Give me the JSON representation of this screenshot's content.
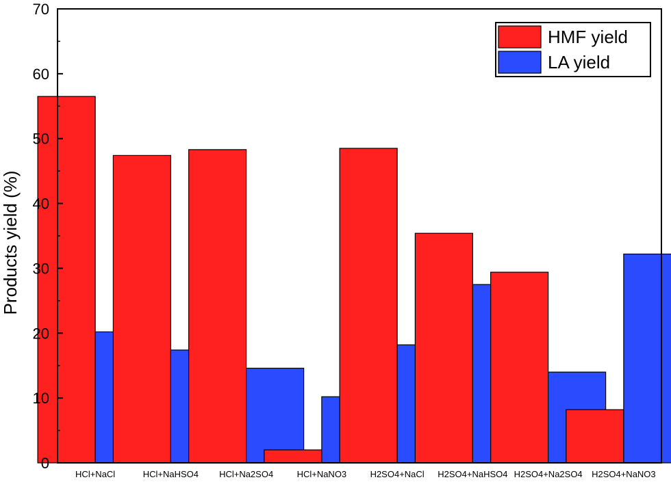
{
  "chart_data": {
    "type": "bar",
    "title": "",
    "xlabel": "",
    "ylabel": "Products yield (%)",
    "ylim": [
      0,
      70
    ],
    "yticks": [
      0,
      10,
      20,
      30,
      40,
      50,
      60,
      70
    ],
    "grid": false,
    "legend_position": "top-right",
    "categories": [
      "HCl+NaCl",
      "HCl+NaHSO4",
      "HCl+Na2SO4",
      "HCl+NaNO3",
      "H2SO4+NaCl",
      "H2SO4+NaHSO4",
      "H2SO4+Na2SO4",
      "H2SO4+NaNO3"
    ],
    "series": [
      {
        "name": "HMF yield",
        "color": "#ff2020",
        "values": [
          56.5,
          47.4,
          48.3,
          2.0,
          48.5,
          35.4,
          29.4,
          8.2
        ]
      },
      {
        "name": "LA yield",
        "color": "#2a4bff",
        "values": [
          20.2,
          17.4,
          14.6,
          10.2,
          18.2,
          27.5,
          14.0,
          32.2
        ]
      }
    ]
  }
}
